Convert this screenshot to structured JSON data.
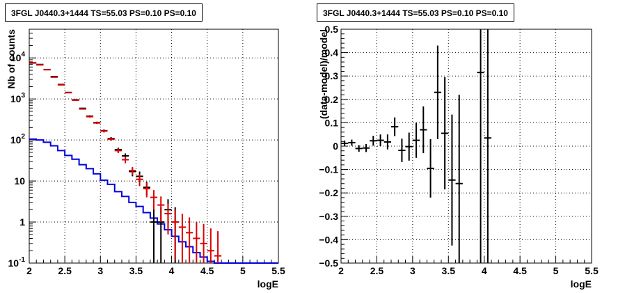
{
  "chart_data": [
    {
      "type": "line",
      "title": "3FGL J0440.3+1444 TS=55.03 PS=0.10 PS=0.10",
      "xlabel": "logE",
      "ylabel": "Nb of counts",
      "xlim": [
        2,
        5.5
      ],
      "ylim": [
        0.1,
        50000
      ],
      "yscale": "log",
      "grid": true,
      "x_ticks": [
        "2",
        "2.5",
        "3",
        "3.5",
        "4",
        "4.5",
        "5",
        "5.5"
      ],
      "y_ticks": [
        "10^-1",
        "1",
        "10",
        "10^2",
        "10^3",
        "10^4"
      ],
      "colors": {
        "data": "#000000",
        "model_total": "#dd0000",
        "model_source": "#0000dd"
      },
      "bin_width": 0.1,
      "series": [
        {
          "role": "data",
          "x": [
            2.05,
            2.15,
            2.25,
            2.35,
            2.45,
            2.55,
            2.65,
            2.75,
            2.85,
            2.95,
            3.05,
            3.15,
            3.25,
            3.35,
            3.45,
            3.55,
            3.65,
            3.75,
            3.85,
            3.95,
            4.05
          ],
          "y": [
            7600,
            6900,
            5200,
            3500,
            2250,
            1440,
            950,
            590,
            380,
            265,
            168,
            108,
            58,
            41,
            17,
            13,
            7,
            1,
            1,
            2,
            1
          ],
          "ylow": [
            7510,
            6810,
            5130,
            3440,
            2200,
            1400,
            920,
            570,
            360,
            250,
            155,
            98,
            51,
            35,
            13,
            9.5,
            4.5,
            0.1,
            0.1,
            0.7,
            0.1
          ],
          "yhigh": [
            7690,
            6990,
            5270,
            3560,
            2300,
            1480,
            980,
            610,
            400,
            280,
            181,
            118,
            65,
            47,
            21,
            17,
            9.5,
            2.3,
            2.3,
            3.6,
            2.3
          ]
        },
        {
          "role": "model_total",
          "x": [
            2.05,
            2.15,
            2.25,
            2.35,
            2.45,
            2.55,
            2.65,
            2.75,
            2.85,
            2.95,
            3.05,
            3.15,
            3.25,
            3.35,
            3.45,
            3.55,
            3.65,
            3.75,
            3.85,
            3.95,
            4.05,
            4.15,
            4.25,
            4.35,
            4.45,
            4.55,
            4.65
          ],
          "y": [
            7500,
            6750,
            5150,
            3400,
            2200,
            1420,
            930,
            570,
            370,
            260,
            165,
            105,
            55,
            33,
            18,
            11,
            6.5,
            4,
            2.6,
            1.6,
            1,
            0.75,
            0.55,
            0.4,
            0.3,
            0.2,
            0.15
          ],
          "ylow": [
            7400,
            6650,
            5080,
            3340,
            2150,
            1380,
            900,
            550,
            350,
            245,
            152,
            96,
            48,
            27,
            14,
            7.5,
            4,
            2,
            1,
            0.5,
            0.12,
            0.1,
            0.1,
            0.1,
            0.1,
            0.1,
            0.1
          ],
          "yhigh": [
            7600,
            6850,
            5220,
            3460,
            2250,
            1460,
            960,
            590,
            390,
            275,
            178,
            114,
            62,
            39,
            22,
            14.5,
            9,
            6,
            4.2,
            2.8,
            2,
            1.6,
            1.3,
            1,
            0.9,
            0.7,
            0.6
          ]
        },
        {
          "role": "model_source",
          "edges": [
            2.0,
            2.1,
            2.2,
            2.3,
            2.4,
            2.5,
            2.6,
            2.7,
            2.8,
            2.9,
            3.0,
            3.1,
            3.2,
            3.3,
            3.4,
            3.5,
            3.6,
            3.7,
            3.8,
            3.9,
            4.0,
            4.1,
            4.2,
            4.3,
            4.4,
            4.5,
            4.6,
            4.7,
            5.5
          ],
          "values": [
            105,
            100,
            88,
            72,
            55,
            42,
            34,
            25,
            20,
            15,
            10.5,
            8.3,
            5.5,
            4.2,
            3,
            2.4,
            1.7,
            1.25,
            0.9,
            0.65,
            0.45,
            0.33,
            0.25,
            0.18,
            0.14,
            0.11,
            0.1,
            0.1
          ]
        }
      ]
    },
    {
      "type": "scatter",
      "title": "3FGL J0440.3+1444 TS=55.03 PS=0.10 PS=0.10",
      "xlabel": "logE",
      "ylabel": "(data-model)/model",
      "xlim": [
        2,
        5.5
      ],
      "ylim": [
        -0.5,
        0.5
      ],
      "grid": true,
      "x_ticks": [
        "2",
        "2.5",
        "3",
        "3.5",
        "4",
        "4.5",
        "5",
        "5.5"
      ],
      "y_ticks": [
        "-0.5",
        "-0.4",
        "-0.3",
        "-0.2",
        "-0.1",
        "0",
        "0.1",
        "0.2",
        "0.3",
        "0.4",
        "0.5"
      ],
      "colors": {
        "data": "#000000"
      },
      "bin_width": 0.1,
      "points": {
        "x": [
          2.05,
          2.15,
          2.25,
          2.35,
          2.45,
          2.55,
          2.65,
          2.75,
          2.85,
          2.95,
          3.05,
          3.15,
          3.25,
          3.35,
          3.45,
          3.55,
          3.65,
          3.95,
          4.05
        ],
        "y": [
          0.012,
          0.015,
          -0.01,
          -0.008,
          0.023,
          0.025,
          0.018,
          0.083,
          -0.018,
          -0.002,
          0.025,
          0.07,
          -0.095,
          0.23,
          0.055,
          -0.145,
          -0.16,
          0.315,
          0.035
        ],
        "err": [
          0.012,
          0.013,
          0.014,
          0.017,
          0.021,
          0.025,
          0.032,
          0.04,
          0.05,
          0.06,
          0.075,
          0.1,
          0.125,
          0.2,
          0.24,
          0.28,
          0.38,
          1.2,
          1.2
        ]
      }
    }
  ]
}
